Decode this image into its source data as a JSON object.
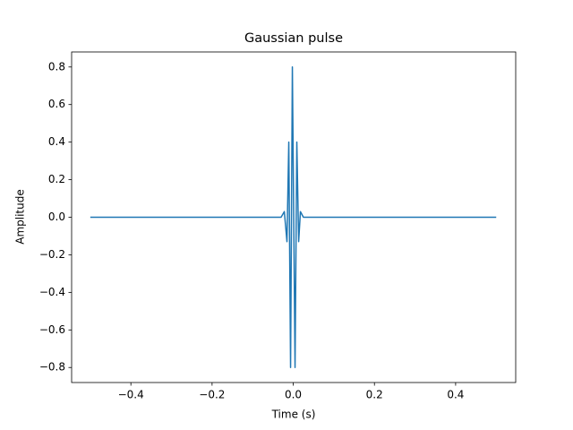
{
  "chart_data": {
    "type": "line",
    "title": "Gaussian pulse",
    "x_label": "Time (s)",
    "y_label": "Amplitude",
    "x": [
      -0.5,
      -0.03,
      -0.022,
      -0.0155,
      -0.011,
      -0.0066,
      -0.0022,
      0.0044,
      0.0088,
      0.0133,
      0.0177,
      0.025,
      0.5
    ],
    "values": [
      0,
      0,
      0.03,
      -0.13,
      0.4,
      -0.8,
      0.8,
      -0.8,
      0.4,
      -0.13,
      0.03,
      0,
      0
    ],
    "color": "#1f77b4",
    "xlim": [
      -0.546,
      0.548
    ],
    "ylim": [
      -0.88,
      0.88
    ],
    "xticks": [
      {
        "value": -0.4,
        "label": "−0.4"
      },
      {
        "value": -0.2,
        "label": "−0.2"
      },
      {
        "value": 0,
        "label": "0.0"
      },
      0.2,
      0.4
    ],
    "yticks": [
      {
        "value": -0.8,
        "label": "−0.8"
      },
      {
        "value": -0.6,
        "label": "−0.6"
      },
      {
        "value": -0.4,
        "label": "−0.4"
      },
      {
        "value": -0.2,
        "label": "−0.2"
      },
      {
        "value": 0,
        "label": "0.0"
      },
      0.2,
      0.4,
      0.6,
      0.8
    ]
  }
}
